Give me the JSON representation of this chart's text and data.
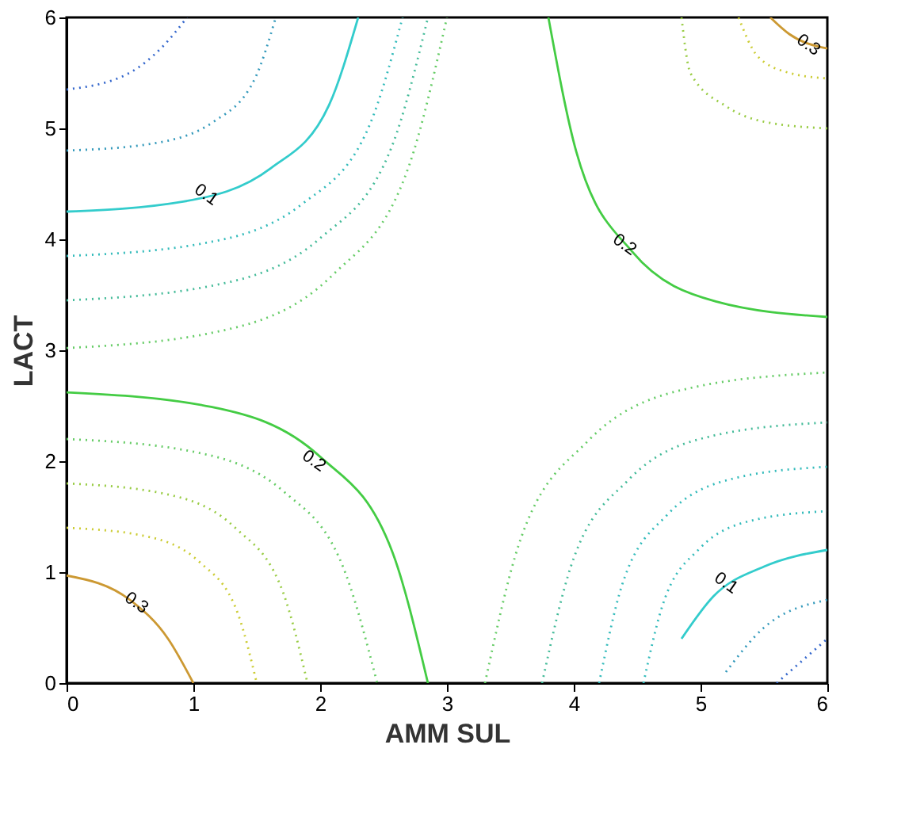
{
  "chart_data": {
    "type": "line",
    "xlabel": "AMM  SUL",
    "ylabel": "LACT",
    "xlim": [
      0,
      6
    ],
    "ylim": [
      0,
      6
    ],
    "xticks": [
      0,
      1,
      2,
      3,
      4,
      5,
      6
    ],
    "yticks": [
      0,
      1,
      2,
      3,
      4,
      5,
      6
    ],
    "grid": false,
    "marker": "none",
    "series": [
      {
        "color": "#44cc44",
        "line_style": "solid",
        "x": [
          0,
          1.14,
          2.0,
          2.57,
          2.85
        ],
        "values": [
          2.62,
          2.49,
          2.04,
          1.18,
          0
        ]
      },
      {
        "color": "#66cc66",
        "line_style": "dotted",
        "x": [
          0,
          0.98,
          1.72,
          2.2,
          2.45
        ],
        "values": [
          2.2,
          2.09,
          1.72,
          0.99,
          0
        ]
      },
      {
        "color": "#99cc44",
        "line_style": "dotted",
        "x": [
          0,
          0.76,
          1.33,
          1.71,
          1.9
        ],
        "values": [
          1.8,
          1.71,
          1.4,
          0.81,
          0
        ]
      },
      {
        "color": "#cccc33",
        "line_style": "dotted",
        "x": [
          0,
          0.6,
          1.05,
          1.35,
          1.5
        ],
        "values": [
          1.4,
          1.33,
          1.09,
          0.63,
          0
        ]
      },
      {
        "color": "#cc9933",
        "line_style": "solid",
        "x": [
          0,
          0.5,
          0.8,
          1.0
        ],
        "values": [
          0.97,
          0.75,
          0.4,
          0
        ]
      },
      {
        "color": "#66cc66",
        "line_style": "dotted",
        "x": [
          0,
          1.2,
          2.1,
          2.7,
          3.0
        ],
        "values": [
          3.02,
          3.17,
          3.68,
          4.66,
          6
        ]
      },
      {
        "color": "#44bb99",
        "line_style": "dotted",
        "x": [
          0,
          1.14,
          2.0,
          2.57,
          2.85
        ],
        "values": [
          3.45,
          3.58,
          4.01,
          4.85,
          6
        ]
      },
      {
        "color": "#33bbbb",
        "line_style": "dotted",
        "x": [
          0,
          1.06,
          1.86,
          2.39,
          2.65
        ],
        "values": [
          3.85,
          3.96,
          4.32,
          5.03,
          6
        ]
      },
      {
        "color": "#33cccc",
        "line_style": "solid",
        "x": [
          0,
          0.92,
          1.61,
          2.07,
          2.3
        ],
        "values": [
          4.25,
          4.34,
          4.64,
          5.21,
          6
        ]
      },
      {
        "color": "#3399bb",
        "line_style": "dotted",
        "x": [
          0,
          0.66,
          1.16,
          1.49,
          1.65
        ],
        "values": [
          4.8,
          4.86,
          5.06,
          5.46,
          6
        ]
      },
      {
        "color": "#3366cc",
        "line_style": "dotted",
        "x": [
          0,
          0.48,
          0.76,
          0.95
        ],
        "values": [
          5.35,
          5.49,
          5.74,
          6
        ]
      },
      {
        "color": "#44cc44",
        "line_style": "solid",
        "x": [
          3.8,
          4.02,
          4.46,
          5.12,
          6
        ],
        "values": [
          6,
          4.79,
          3.89,
          3.44,
          3.3
        ]
      },
      {
        "color": "#99cc44",
        "line_style": "dotted",
        "x": [
          4.85,
          4.92,
          5.2,
          5.5,
          6
        ],
        "values": [
          6,
          5.5,
          5.2,
          5.06,
          5.0
        ]
      },
      {
        "color": "#cccc33",
        "line_style": "dotted",
        "x": [
          5.3,
          5.45,
          5.7,
          6
        ],
        "values": [
          6,
          5.65,
          5.5,
          5.45
        ]
      },
      {
        "color": "#cc9933",
        "line_style": "solid",
        "x": [
          5.55,
          5.7,
          6
        ],
        "values": [
          6,
          5.85,
          5.72
        ]
      },
      {
        "color": "#66cc66",
        "line_style": "dotted",
        "x": [
          3.3,
          3.57,
          4.11,
          4.92,
          6
        ],
        "values": [
          0,
          1.26,
          2.18,
          2.66,
          2.8
        ]
      },
      {
        "color": "#44bb99",
        "line_style": "dotted",
        "x": [
          3.75,
          3.98,
          4.43,
          5.1,
          6
        ],
        "values": [
          0,
          1.06,
          1.83,
          2.23,
          2.35
        ]
      },
      {
        "color": "#33bbbb",
        "line_style": "dotted",
        "x": [
          4.2,
          4.38,
          4.74,
          5.28,
          6
        ],
        "values": [
          0,
          0.88,
          1.52,
          1.85,
          1.95
        ]
      },
      {
        "color": "#33bbbb",
        "line_style": "dotted",
        "x": [
          4.55,
          4.7,
          4.99,
          5.42,
          6
        ],
        "values": [
          0,
          0.7,
          1.21,
          1.47,
          1.55
        ]
      },
      {
        "color": "#33cccc",
        "line_style": "solid",
        "x": [
          4.85,
          5.1,
          5.5,
          6
        ],
        "values": [
          0.4,
          0.78,
          1.05,
          1.2
        ]
      },
      {
        "color": "#3399bb",
        "line_style": "dotted",
        "x": [
          5.2,
          5.5,
          6
        ],
        "values": [
          0.1,
          0.5,
          0.75
        ]
      },
      {
        "color": "#3366cc",
        "line_style": "dotted",
        "x": [
          5.6,
          6
        ],
        "values": [
          0,
          0.4
        ]
      }
    ],
    "annotations": [
      {
        "text": "0.1",
        "x": 1.1,
        "y": 4.4
      },
      {
        "text": "0.2",
        "x": 4.4,
        "y": 3.95
      },
      {
        "text": "0.2",
        "x": 1.95,
        "y": 2.0
      },
      {
        "text": "0.3",
        "x": 0.55,
        "y": 0.72
      },
      {
        "text": "0.1",
        "x": 5.2,
        "y": 0.9
      },
      {
        "text": "0.3",
        "x": 5.85,
        "y": 5.75
      }
    ]
  }
}
